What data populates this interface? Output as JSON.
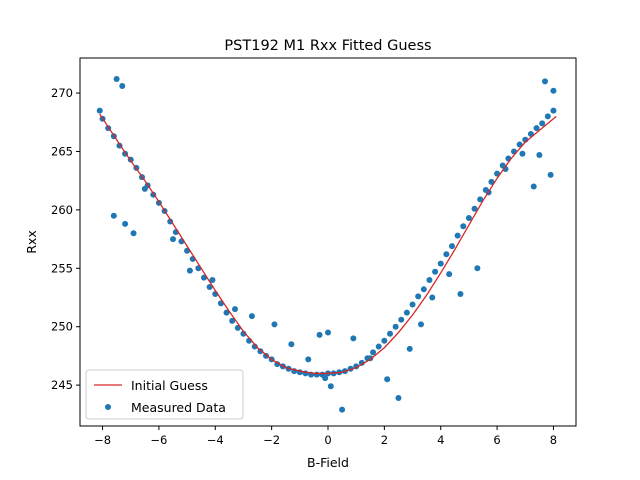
{
  "chart_data": {
    "type": "scatter",
    "title": "PST192 M1 Rxx Fitted Guess",
    "xlabel": "B-Field",
    "ylabel": "Rxx",
    "xlim": [
      -8.8,
      8.8
    ],
    "ylim": [
      241.5,
      273.0
    ],
    "x_ticks": [
      -8,
      -6,
      -4,
      -2,
      0,
      2,
      4,
      6,
      8
    ],
    "x_tick_labels": [
      "−8",
      "−6",
      "−4",
      "−2",
      "0",
      "2",
      "4",
      "6",
      "8"
    ],
    "y_ticks": [
      245,
      250,
      255,
      260,
      265,
      270
    ],
    "y_tick_labels": [
      "245",
      "250",
      "255",
      "260",
      "265",
      "270"
    ],
    "grid": false,
    "legend_position": "lower-left",
    "series": [
      {
        "name": "Initial Guess",
        "kind": "line",
        "color": "#d62728",
        "x": [
          -8.1,
          -7.5,
          -7.0,
          -6.5,
          -6.0,
          -5.5,
          -5.0,
          -4.5,
          -4.0,
          -3.5,
          -3.0,
          -2.5,
          -2.0,
          -1.5,
          -1.0,
          -0.5,
          0.0,
          0.5,
          1.0,
          1.5,
          2.0,
          2.5,
          3.0,
          3.5,
          4.0,
          4.5,
          5.0,
          5.5,
          6.0,
          6.5,
          7.0,
          7.5,
          8.1
        ],
        "y": [
          268.2,
          266.0,
          264.2,
          262.5,
          260.7,
          258.8,
          256.9,
          255.0,
          253.1,
          251.3,
          249.6,
          248.2,
          247.2,
          246.5,
          246.2,
          246.0,
          246.0,
          246.1,
          246.5,
          247.2,
          248.2,
          249.5,
          251.0,
          252.7,
          254.6,
          256.6,
          258.7,
          260.8,
          262.7,
          264.4,
          265.8,
          266.8,
          268.0
        ]
      },
      {
        "name": "Measured Data",
        "kind": "scatter",
        "color": "#1f77b4",
        "x": [
          -8.1,
          -8.0,
          -7.8,
          -7.6,
          -7.4,
          -7.2,
          -7.0,
          -6.8,
          -6.6,
          -6.4,
          -6.2,
          -6.0,
          -5.8,
          -5.6,
          -5.4,
          -5.2,
          -5.0,
          -4.8,
          -4.6,
          -4.4,
          -4.2,
          -4.0,
          -3.8,
          -3.6,
          -3.4,
          -3.2,
          -3.0,
          -2.8,
          -2.6,
          -2.4,
          -2.2,
          -2.0,
          -1.8,
          -1.6,
          -1.4,
          -1.2,
          -1.0,
          -0.8,
          -0.6,
          -0.4,
          -0.2,
          0.0,
          0.2,
          0.4,
          0.6,
          0.8,
          1.0,
          1.2,
          1.4,
          1.6,
          1.8,
          2.0,
          2.2,
          2.4,
          2.6,
          2.8,
          3.0,
          3.2,
          3.4,
          3.6,
          3.8,
          4.0,
          4.2,
          4.4,
          4.6,
          4.8,
          5.0,
          5.2,
          5.4,
          5.6,
          5.8,
          6.0,
          6.2,
          6.4,
          6.6,
          6.8,
          7.0,
          7.2,
          7.4,
          7.6,
          7.8,
          8.0,
          -7.5,
          -7.3,
          -7.6,
          -7.2,
          -6.9,
          -6.5,
          -5.5,
          -4.9,
          -4.1,
          -3.3,
          -2.7,
          -1.9,
          -1.3,
          -0.7,
          -0.1,
          0.1,
          0.5,
          0.9,
          1.5,
          2.1,
          2.5,
          2.9,
          3.3,
          3.7,
          4.3,
          4.7,
          5.3,
          5.7,
          6.3,
          6.9,
          7.3,
          7.7,
          8.0,
          7.9,
          7.5,
          0.0,
          -0.3
        ],
        "y": [
          268.5,
          267.8,
          267.0,
          266.3,
          265.5,
          264.8,
          264.3,
          263.6,
          262.8,
          262.1,
          261.3,
          260.6,
          259.9,
          259.0,
          258.1,
          257.3,
          256.5,
          255.8,
          255.0,
          254.2,
          253.4,
          252.8,
          252.0,
          251.2,
          250.5,
          249.9,
          249.4,
          248.8,
          248.3,
          247.9,
          247.5,
          247.2,
          246.8,
          246.6,
          246.4,
          246.2,
          246.1,
          246.0,
          245.9,
          245.9,
          245.9,
          246.0,
          246.0,
          246.1,
          246.2,
          246.4,
          246.6,
          246.9,
          247.3,
          247.8,
          248.3,
          248.8,
          249.4,
          250.0,
          250.6,
          251.2,
          251.9,
          252.6,
          253.2,
          254.0,
          254.7,
          255.4,
          256.2,
          256.9,
          257.8,
          258.6,
          259.3,
          260.1,
          260.9,
          261.7,
          262.4,
          263.1,
          263.8,
          264.4,
          265.0,
          265.6,
          266.0,
          266.5,
          267.0,
          267.4,
          268.0,
          268.5,
          271.2,
          270.6,
          259.5,
          258.8,
          258.0,
          261.8,
          257.5,
          254.8,
          254.0,
          251.5,
          250.9,
          250.2,
          248.5,
          247.2,
          245.6,
          244.9,
          242.9,
          249.0,
          247.3,
          245.5,
          243.9,
          248.1,
          250.2,
          252.5,
          254.5,
          252.8,
          255.0,
          261.5,
          263.5,
          264.8,
          262.0,
          271.0,
          270.2,
          263.0,
          264.7,
          249.5,
          249.3
        ]
      }
    ]
  }
}
